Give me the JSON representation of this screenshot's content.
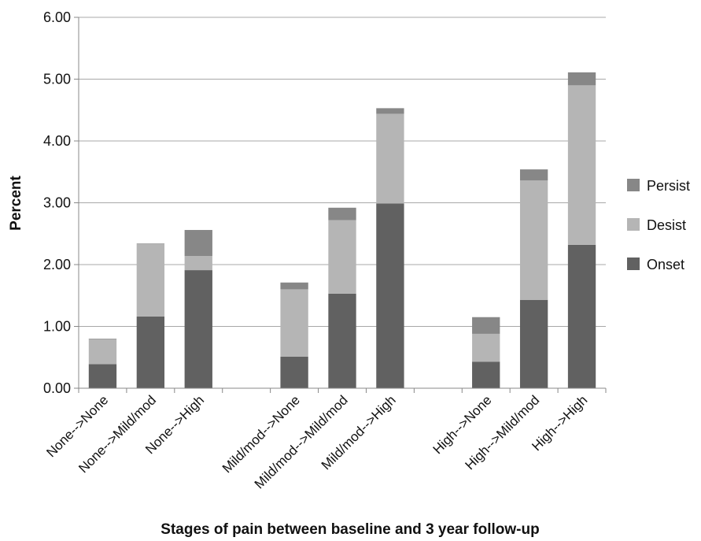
{
  "chart_data": {
    "type": "bar",
    "stacked": true,
    "xlabel": "Stages of pain between baseline and 3 year follow-up",
    "ylabel": "Percent",
    "ylim": [
      0,
      6
    ],
    "yticks": [
      "0.00",
      "1.00",
      "2.00",
      "3.00",
      "4.00",
      "5.00",
      "6.00"
    ],
    "grid": true,
    "legend_position": "right",
    "categories": [
      "None-->None",
      "None-->Mild/mod",
      "None-->High",
      "Mild/mod-->None",
      "Mild/mod-->Mild/mod",
      "Mild/mod-->High",
      "High-->None",
      "High-->Mild/mod",
      "High-->High"
    ],
    "groups": [
      {
        "categories": [
          0,
          1,
          2
        ]
      },
      {
        "categories": [
          3,
          4,
          5
        ]
      },
      {
        "categories": [
          6,
          7,
          8
        ]
      }
    ],
    "series": [
      {
        "name": "Onset",
        "color": "#616161",
        "values": [
          0.39,
          1.16,
          1.91,
          0.51,
          1.53,
          2.99,
          0.43,
          1.43,
          2.32
        ]
      },
      {
        "name": "Desist",
        "color": "#b5b5b5",
        "values": [
          0.4,
          1.17,
          0.23,
          1.09,
          1.19,
          1.45,
          0.45,
          1.93,
          2.58
        ]
      },
      {
        "name": "Persist",
        "color": "#878787",
        "values": [
          0.01,
          0.01,
          0.42,
          0.11,
          0.2,
          0.09,
          0.27,
          0.18,
          0.21
        ]
      }
    ],
    "legend_order": [
      "Persist",
      "Desist",
      "Onset"
    ]
  }
}
